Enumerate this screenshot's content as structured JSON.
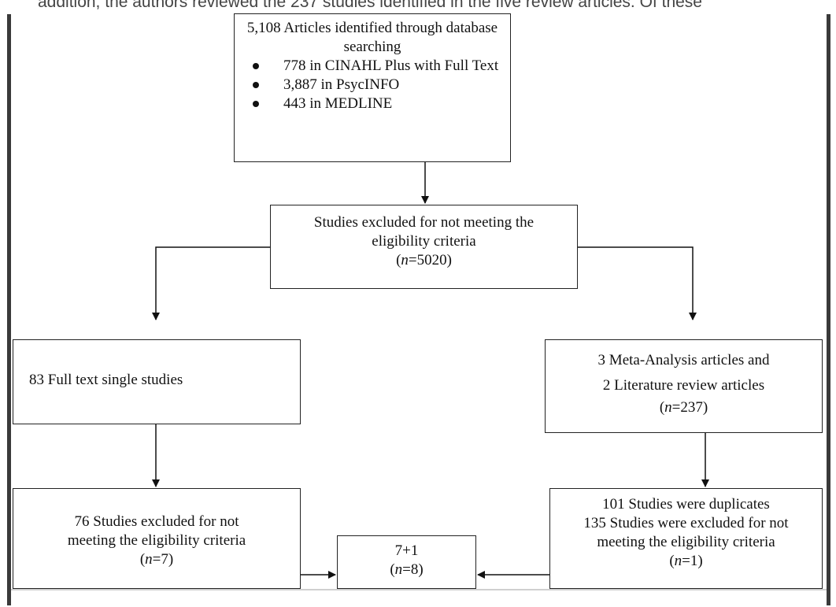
{
  "page": {
    "cut_text": "addition, the authors reviewed the 237 studies identified in the five review articles. Of these"
  },
  "flow": {
    "top": {
      "title_line1": "5,108 Articles identified through database",
      "title_line2": "searching",
      "sources": [
        "778 in CINAHL Plus with Full Text",
        "3,887 in PsycINFO",
        "443 in MEDLINE"
      ]
    },
    "excluded": {
      "line1": "Studies excluded for not meeting the",
      "line2": "eligibility criteria",
      "n_prefix": "(",
      "n_var": "n",
      "n_value": "=5020)"
    },
    "single": {
      "label": "83 Full text single studies"
    },
    "meta": {
      "line1": "3 Meta-Analysis articles and",
      "line2": "2 Literature review articles",
      "n_prefix": "(",
      "n_var": "n",
      "n_value": "=237)"
    },
    "left_bottom": {
      "line1": "76 Studies excluded for not",
      "line2": "meeting the eligibility criteria",
      "n_prefix": "(",
      "n_var": "n",
      "n_value": "=7)"
    },
    "final": {
      "line1": "7+1",
      "n_prefix": "(",
      "n_var": "n",
      "n_value": "=8)"
    },
    "right_bottom": {
      "line1": "101 Studies were duplicates",
      "line2": "135 Studies were excluded for not",
      "line3": "meeting the eligibility criteria",
      "n_prefix": "(",
      "n_var": "n",
      "n_value": "=1)"
    }
  }
}
